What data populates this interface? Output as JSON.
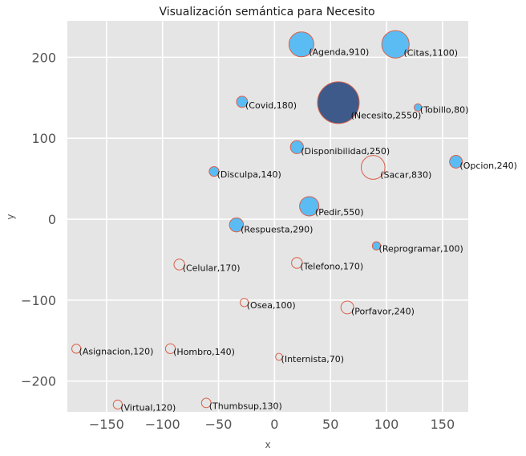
{
  "chart_data": {
    "type": "scatter",
    "title": "Visualización semántica para Necesito",
    "xlabel": "x",
    "ylabel": "y",
    "xlim": [
      -185,
      173
    ],
    "ylim": [
      -238,
      245
    ],
    "xticks": [
      -150,
      -100,
      -50,
      0,
      50,
      100,
      150
    ],
    "yticks": [
      -200,
      -100,
      0,
      100,
      200
    ],
    "grid": true,
    "colors": {
      "background": "#e5e5e5",
      "grid": "#ffffff",
      "bubble_fill": "#5bbcf3",
      "center_fill": "#3d5a8a",
      "edge": "#d9604a"
    },
    "points": [
      {
        "word": "Necesito",
        "x": 57,
        "y": 144,
        "freq": 2550,
        "style": "center"
      },
      {
        "word": "Agenda",
        "x": 24,
        "y": 216,
        "freq": 910,
        "style": "filled"
      },
      {
        "word": "Citas",
        "x": 108,
        "y": 216,
        "freq": 1100,
        "style": "filled"
      },
      {
        "word": "Covid",
        "x": -29,
        "y": 145,
        "freq": 180,
        "style": "filled"
      },
      {
        "word": "Tobillo",
        "x": 128,
        "y": 138,
        "freq": 80,
        "style": "filled"
      },
      {
        "word": "Disponibilidad",
        "x": 20,
        "y": 89,
        "freq": 250,
        "style": "filled"
      },
      {
        "word": "Sacar",
        "x": 88,
        "y": 64,
        "freq": 830,
        "style": "hollow"
      },
      {
        "word": "Opcion",
        "x": 162,
        "y": 71,
        "freq": 240,
        "style": "filled"
      },
      {
        "word": "Disculpa",
        "x": -54,
        "y": 59,
        "freq": 140,
        "style": "filled"
      },
      {
        "word": "Pedir",
        "x": 31,
        "y": 16,
        "freq": 550,
        "style": "filled"
      },
      {
        "word": "Respuesta",
        "x": -34,
        "y": -7,
        "freq": 290,
        "style": "filled"
      },
      {
        "word": "Reprogramar",
        "x": 91,
        "y": -33,
        "freq": 100,
        "style": "filled"
      },
      {
        "word": "Celular",
        "x": -85,
        "y": -56,
        "freq": 170,
        "style": "hollow"
      },
      {
        "word": "Telefono",
        "x": 20,
        "y": -54,
        "freq": 170,
        "style": "hollow"
      },
      {
        "word": "Osea",
        "x": -27,
        "y": -103,
        "freq": 100,
        "style": "hollow"
      },
      {
        "word": "Porfavor",
        "x": 65,
        "y": -109,
        "freq": 240,
        "style": "hollow"
      },
      {
        "word": "Asignacion",
        "x": -177,
        "y": -160,
        "freq": 120,
        "style": "hollow"
      },
      {
        "word": "Hombro",
        "x": -93,
        "y": -160,
        "freq": 140,
        "style": "hollow"
      },
      {
        "word": "Internista",
        "x": 4,
        "y": -170,
        "freq": 70,
        "style": "hollow"
      },
      {
        "word": "Virtual",
        "x": -140,
        "y": -229,
        "freq": 120,
        "style": "hollow"
      },
      {
        "word": "Thumbsup",
        "x": -61,
        "y": -227,
        "freq": 130,
        "style": "hollow"
      }
    ]
  }
}
